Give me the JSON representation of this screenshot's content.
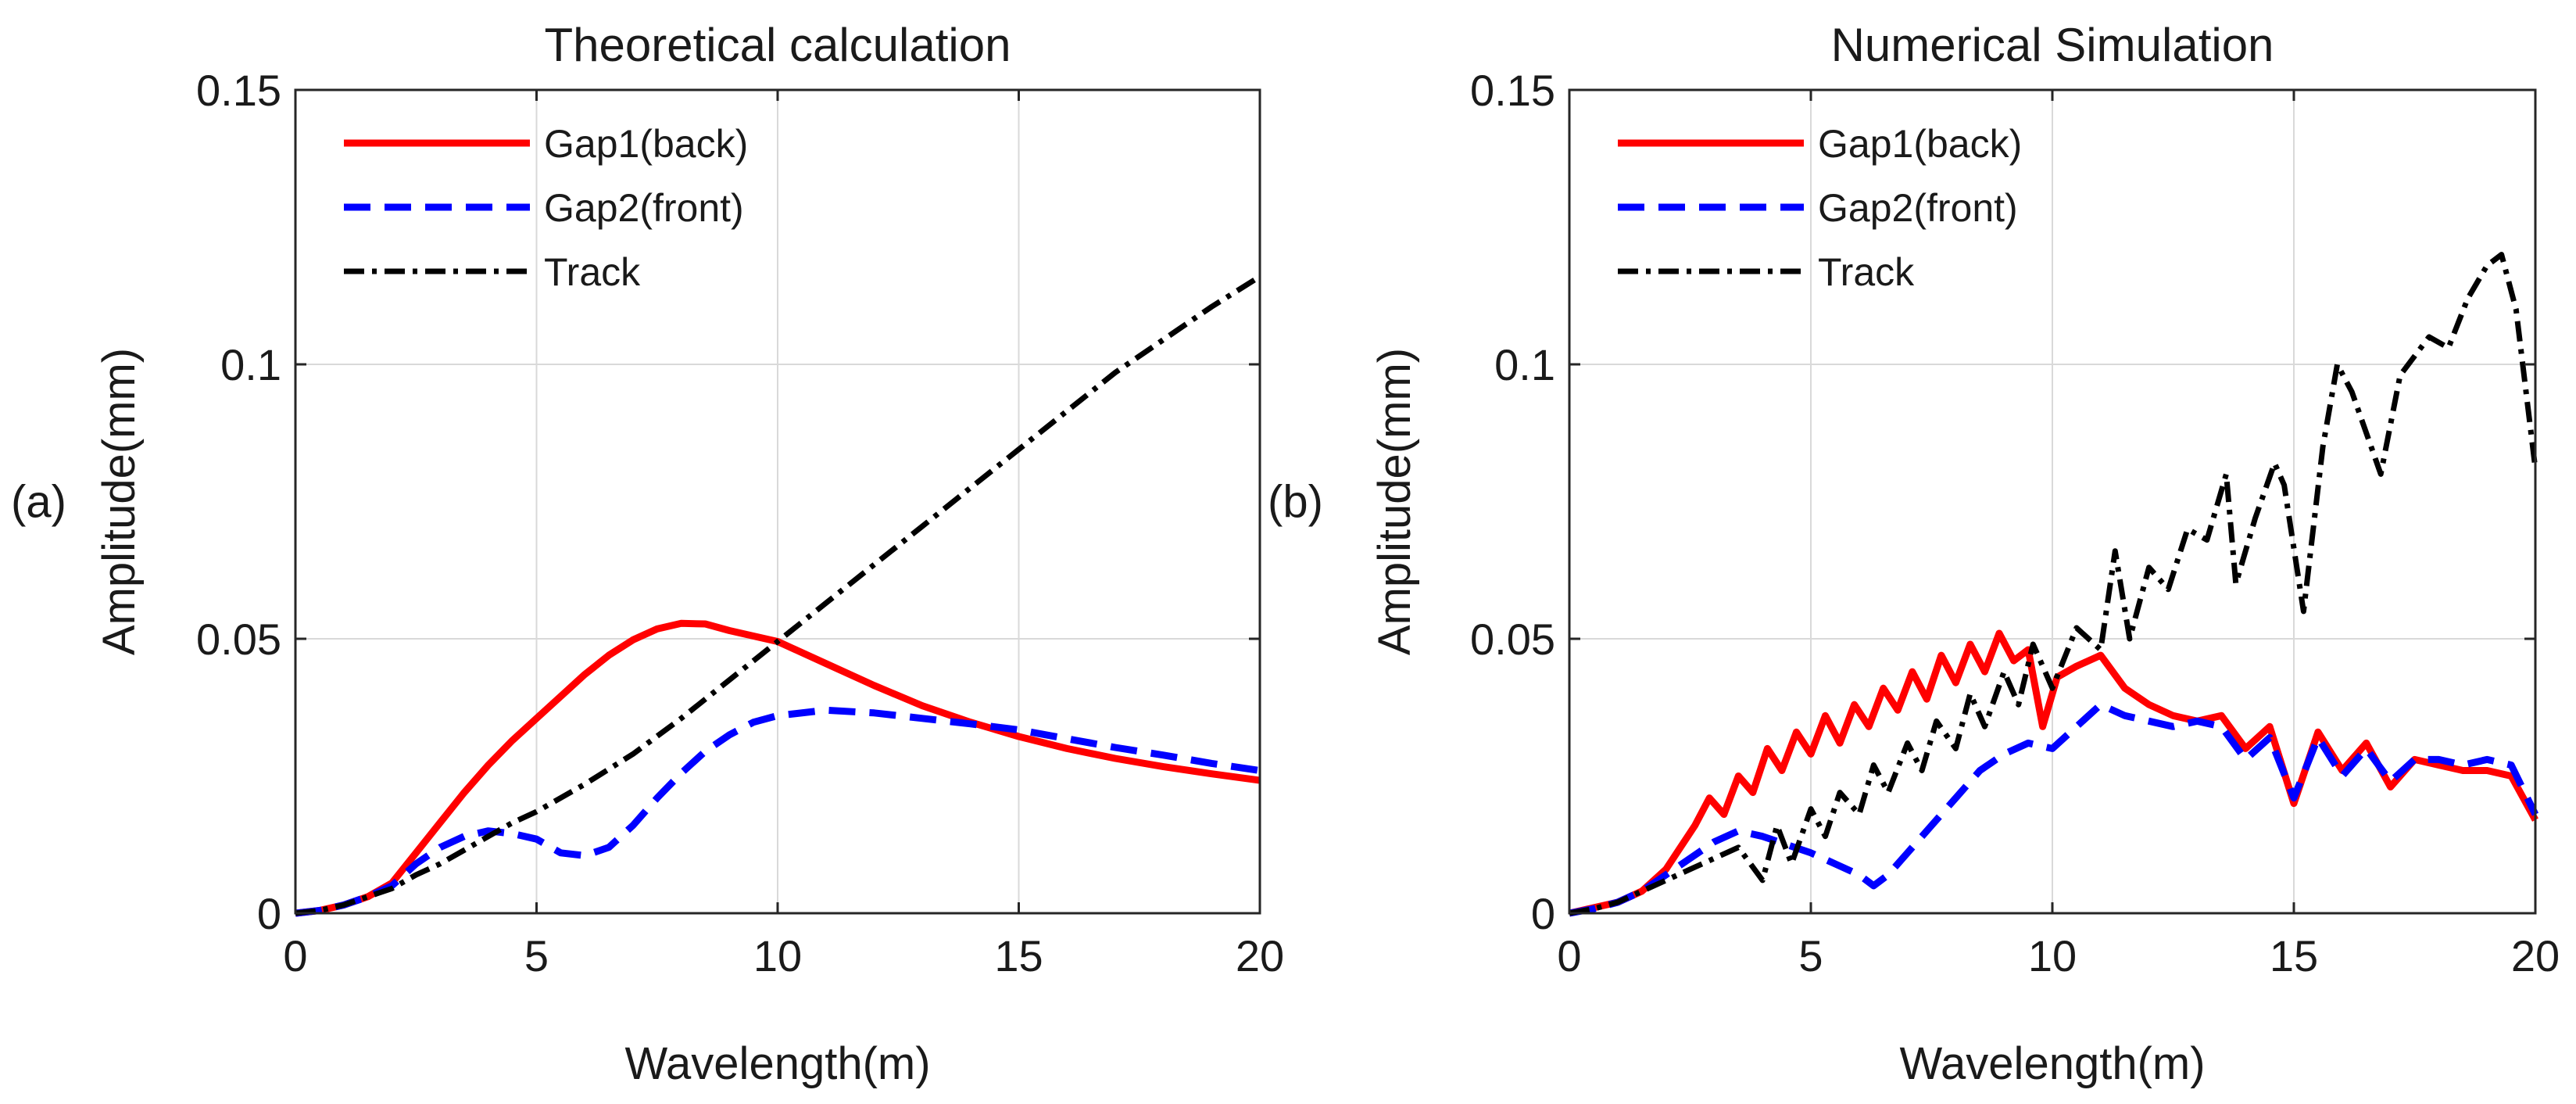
{
  "chart_data": [
    {
      "type": "line",
      "panel_label": "(a)",
      "title": "Theoretical calculation",
      "xlabel": "Wavelength(m)",
      "ylabel": "Amplitude(mm)",
      "xlim": [
        0,
        20
      ],
      "ylim": [
        0,
        0.15
      ],
      "xticks": [
        0,
        5,
        10,
        15,
        20
      ],
      "xtick_labels": [
        "0",
        "5",
        "10",
        "15",
        "20"
      ],
      "yticks": [
        0,
        0.05,
        0.1,
        0.15
      ],
      "ytick_labels": [
        "0",
        "0.05",
        "0.1",
        "0.15"
      ],
      "grid": true,
      "legend_position": "top-left",
      "series": [
        {
          "name": "Gap1(back)",
          "color": "#ff0000",
          "style": "solid",
          "x": [
            0,
            0.5,
            1,
            1.5,
            2,
            2.5,
            3,
            3.5,
            4,
            4.5,
            5,
            5.5,
            6,
            6.5,
            7,
            7.5,
            8,
            8.5,
            9,
            9.5,
            10,
            11,
            12,
            13,
            14,
            15,
            16,
            17,
            18,
            19,
            20
          ],
          "y": [
            0,
            0.0005,
            0.0015,
            0.003,
            0.0055,
            0.011,
            0.0165,
            0.022,
            0.027,
            0.0315,
            0.0355,
            0.0395,
            0.0435,
            0.047,
            0.0498,
            0.0518,
            0.0528,
            0.0527,
            0.0515,
            0.0505,
            0.0495,
            0.0455,
            0.0415,
            0.0378,
            0.0348,
            0.0322,
            0.03,
            0.0282,
            0.0267,
            0.0254,
            0.0242
          ]
        },
        {
          "name": "Gap2(front)",
          "color": "#0000ff",
          "style": "dashed",
          "x": [
            0,
            0.5,
            1,
            1.5,
            2,
            2.5,
            3,
            3.5,
            4,
            4.5,
            5,
            5.5,
            6,
            6.5,
            7,
            7.5,
            8,
            8.5,
            9,
            9.5,
            10,
            11,
            12,
            13,
            14,
            15,
            16,
            17,
            18,
            19,
            20
          ],
          "y": [
            0,
            0.0005,
            0.0015,
            0.003,
            0.005,
            0.009,
            0.012,
            0.014,
            0.015,
            0.0145,
            0.0135,
            0.011,
            0.0105,
            0.012,
            0.016,
            0.021,
            0.0255,
            0.0295,
            0.0325,
            0.0348,
            0.036,
            0.037,
            0.0365,
            0.0355,
            0.0345,
            0.0334,
            0.0318,
            0.0302,
            0.0288,
            0.0273,
            0.026
          ]
        },
        {
          "name": "Track",
          "color": "#000000",
          "style": "dash-dot",
          "x": [
            0,
            0.5,
            1,
            1.5,
            2,
            2.5,
            3,
            3.5,
            4,
            4.5,
            5,
            6,
            7,
            8,
            9,
            10,
            11,
            12,
            13,
            14,
            15,
            16,
            17,
            18,
            19,
            20
          ],
          "y": [
            0,
            0.0005,
            0.0015,
            0.003,
            0.0045,
            0.007,
            0.009,
            0.0115,
            0.014,
            0.0165,
            0.0185,
            0.0235,
            0.029,
            0.0355,
            0.0425,
            0.0495,
            0.0565,
            0.0635,
            0.0705,
            0.0775,
            0.0845,
            0.0915,
            0.0985,
            0.1045,
            0.1105,
            0.116
          ]
        }
      ]
    },
    {
      "type": "line",
      "panel_label": "(b)",
      "title": "Numerical Simulation",
      "xlabel": "Wavelength(m)",
      "ylabel": "Amplitude(mm)",
      "xlim": [
        0,
        20
      ],
      "ylim": [
        0,
        0.15
      ],
      "xticks": [
        0,
        5,
        10,
        15,
        20
      ],
      "xtick_labels": [
        "0",
        "5",
        "10",
        "15",
        "20"
      ],
      "yticks": [
        0,
        0.05,
        0.1,
        0.15
      ],
      "ytick_labels": [
        "0",
        "0.05",
        "0.1",
        "0.15"
      ],
      "grid": true,
      "legend_position": "top-left",
      "series": [
        {
          "name": "Gap1(back)",
          "color": "#ff0000",
          "style": "solid",
          "x": [
            0,
            0.5,
            1,
            1.5,
            2,
            2.3,
            2.6,
            2.9,
            3.2,
            3.5,
            3.8,
            4.1,
            4.4,
            4.7,
            5,
            5.3,
            5.6,
            5.9,
            6.2,
            6.5,
            6.8,
            7.1,
            7.4,
            7.7,
            8,
            8.3,
            8.6,
            8.9,
            9.2,
            9.5,
            9.8,
            10.1,
            10.5,
            11,
            11.5,
            12,
            12.5,
            13,
            13.5,
            14,
            14.5,
            15,
            15.5,
            16,
            16.5,
            17,
            17.5,
            18,
            18.5,
            19,
            19.5,
            20
          ],
          "y": [
            0,
            0.001,
            0.002,
            0.004,
            0.008,
            0.012,
            0.016,
            0.021,
            0.018,
            0.025,
            0.022,
            0.03,
            0.026,
            0.033,
            0.029,
            0.036,
            0.031,
            0.038,
            0.034,
            0.041,
            0.037,
            0.044,
            0.039,
            0.047,
            0.042,
            0.049,
            0.044,
            0.051,
            0.046,
            0.048,
            0.034,
            0.043,
            0.045,
            0.047,
            0.041,
            0.038,
            0.036,
            0.035,
            0.036,
            0.03,
            0.034,
            0.02,
            0.033,
            0.026,
            0.031,
            0.023,
            0.028,
            0.027,
            0.026,
            0.026,
            0.025,
            0.017
          ]
        },
        {
          "name": "Gap2(front)",
          "color": "#0000ff",
          "style": "dashed",
          "x": [
            0,
            0.5,
            1,
            1.5,
            2,
            2.5,
            3,
            3.5,
            4,
            4.5,
            5,
            5.5,
            6,
            6.3,
            6.6,
            7,
            7.5,
            8,
            8.5,
            9,
            9.5,
            10,
            10.5,
            11,
            11.5,
            12,
            12.5,
            13,
            13.5,
            14,
            14.5,
            15,
            15.5,
            16,
            16.5,
            17,
            17.5,
            18,
            18.5,
            19,
            19.5,
            20
          ],
          "y": [
            0,
            0.0008,
            0.002,
            0.004,
            0.007,
            0.01,
            0.013,
            0.015,
            0.014,
            0.0125,
            0.011,
            0.009,
            0.007,
            0.005,
            0.007,
            0.011,
            0.016,
            0.021,
            0.026,
            0.029,
            0.031,
            0.03,
            0.034,
            0.038,
            0.036,
            0.035,
            0.034,
            0.035,
            0.034,
            0.028,
            0.032,
            0.021,
            0.032,
            0.025,
            0.03,
            0.024,
            0.028,
            0.028,
            0.027,
            0.028,
            0.027,
            0.018
          ]
        },
        {
          "name": "Track",
          "color": "#000000",
          "style": "dash-dot",
          "x": [
            0,
            0.5,
            1,
            1.5,
            2,
            2.5,
            3,
            3.5,
            4,
            4.3,
            4.6,
            5,
            5.3,
            5.6,
            6,
            6.3,
            6.6,
            7,
            7.3,
            7.6,
            8,
            8.3,
            8.6,
            9,
            9.3,
            9.6,
            10,
            10.5,
            11,
            11.3,
            11.6,
            12,
            12.4,
            12.8,
            13.2,
            13.6,
            13.8,
            14.2,
            14.6,
            14.8,
            15.2,
            15.6,
            15.9,
            16.2,
            16.8,
            17.2,
            17.8,
            18.2,
            18.6,
            19,
            19.3,
            19.6,
            20
          ],
          "y": [
            0,
            0.0008,
            0.002,
            0.004,
            0.006,
            0.008,
            0.01,
            0.012,
            0.006,
            0.016,
            0.009,
            0.019,
            0.014,
            0.022,
            0.018,
            0.027,
            0.022,
            0.031,
            0.026,
            0.035,
            0.03,
            0.04,
            0.034,
            0.044,
            0.038,
            0.049,
            0.041,
            0.052,
            0.048,
            0.066,
            0.05,
            0.063,
            0.059,
            0.07,
            0.068,
            0.08,
            0.06,
            0.072,
            0.082,
            0.078,
            0.055,
            0.085,
            0.1,
            0.095,
            0.08,
            0.098,
            0.105,
            0.103,
            0.112,
            0.118,
            0.12,
            0.11,
            0.081
          ]
        }
      ]
    }
  ],
  "colors": {
    "grid": "#d9d9d9",
    "axis": "#262626",
    "background": "#ffffff"
  }
}
